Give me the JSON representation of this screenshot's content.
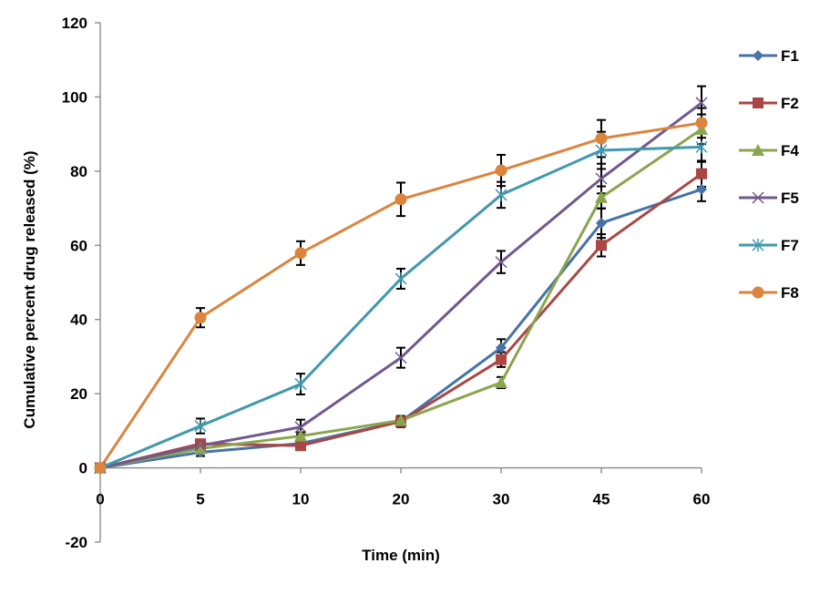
{
  "chart_data": {
    "type": "line",
    "title": "",
    "xlabel": "Time (min)",
    "ylabel": "Cumulative percent drug released (%)",
    "categories": [
      "0",
      "5",
      "10",
      "20",
      "30",
      "45",
      "60"
    ],
    "ylim": [
      -20,
      120
    ],
    "yticks": [
      -20,
      0,
      20,
      40,
      60,
      80,
      100,
      120
    ],
    "grid": false,
    "legend_position": "right",
    "error_bars": true,
    "series": [
      {
        "name": "F1",
        "color": "#4572A7",
        "marker": "diamond",
        "values": [
          0,
          4.2,
          6.6,
          12.5,
          32.4,
          66.0,
          75.1
        ],
        "errors": [
          0,
          1.0,
          1.0,
          1.5,
          2.3,
          4.0,
          3.2
        ]
      },
      {
        "name": "F2",
        "color": "#AA4643",
        "marker": "square",
        "values": [
          0,
          6.5,
          6.0,
          12.5,
          29.2,
          60.0,
          79.3
        ],
        "errors": [
          0,
          1.0,
          1.0,
          1.2,
          2.0,
          3.0,
          3.5
        ]
      },
      {
        "name": "F4",
        "color": "#89A54E",
        "marker": "triangle",
        "values": [
          0,
          5.2,
          8.6,
          12.8,
          23.0,
          72.9,
          91.3
        ],
        "errors": [
          0,
          1.0,
          1.0,
          1.0,
          1.5,
          3.0,
          4.0
        ]
      },
      {
        "name": "F5",
        "color": "#71588F",
        "marker": "x",
        "values": [
          0,
          6.0,
          11.0,
          29.7,
          55.5,
          78.0,
          98.4
        ],
        "errors": [
          0,
          1.0,
          2.0,
          2.7,
          3.0,
          4.0,
          4.5
        ]
      },
      {
        "name": "F7",
        "color": "#4198AF",
        "marker": "star",
        "values": [
          0,
          11.3,
          22.6,
          51.0,
          73.6,
          85.6,
          86.5
        ],
        "errors": [
          0,
          2.0,
          2.8,
          2.7,
          3.5,
          5.0,
          4.0
        ]
      },
      {
        "name": "F8",
        "color": "#DB843D",
        "marker": "circle",
        "values": [
          0,
          40.5,
          57.9,
          72.4,
          80.2,
          88.8,
          93.0
        ],
        "errors": [
          0,
          2.6,
          3.2,
          4.5,
          4.2,
          5.0,
          4.0
        ]
      }
    ]
  }
}
